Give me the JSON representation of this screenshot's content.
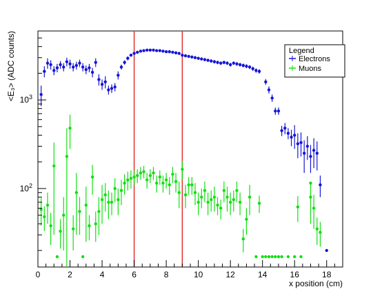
{
  "chart_data": {
    "type": "scatter",
    "ylabel": "<E₃> (ADC counts)",
    "xlabel": "x position (cm)",
    "xlim": [
      0,
      19
    ],
    "ylim": [
      13,
      6000
    ],
    "log_y": true,
    "grid": false,
    "legend_placement": "top-right",
    "legend": {
      "title": "Legend"
    },
    "x_ticks": [
      "0",
      "2",
      "4",
      "6",
      "8",
      "10",
      "12",
      "14",
      "16",
      "18"
    ],
    "y_ticks": [
      {
        "value": 100,
        "label": "10",
        "exp": "2"
      },
      {
        "value": 1000,
        "label": "10",
        "exp": "3"
      }
    ],
    "vlines": [
      6,
      9
    ],
    "vline_color": "#e0302a",
    "series": [
      {
        "name": "Electrons",
        "color": "#1414d8",
        "points": [
          {
            "x": 0.2,
            "y": 1150,
            "e": 300
          },
          {
            "x": 0.4,
            "y": 2100,
            "e": 300
          },
          {
            "x": 0.6,
            "y": 2600,
            "e": 350
          },
          {
            "x": 0.8,
            "y": 2500,
            "e": 300
          },
          {
            "x": 1.0,
            "y": 2150,
            "e": 250
          },
          {
            "x": 1.2,
            "y": 2300,
            "e": 250
          },
          {
            "x": 1.4,
            "y": 2500,
            "e": 250
          },
          {
            "x": 1.6,
            "y": 2350,
            "e": 250
          },
          {
            "x": 1.8,
            "y": 2700,
            "e": 300
          },
          {
            "x": 2.0,
            "y": 2550,
            "e": 300
          },
          {
            "x": 2.2,
            "y": 2350,
            "e": 250
          },
          {
            "x": 2.4,
            "y": 2450,
            "e": 250
          },
          {
            "x": 2.6,
            "y": 2600,
            "e": 250
          },
          {
            "x": 2.8,
            "y": 2350,
            "e": 250
          },
          {
            "x": 3.0,
            "y": 2200,
            "e": 250
          },
          {
            "x": 3.2,
            "y": 2300,
            "e": 250
          },
          {
            "x": 3.4,
            "y": 2050,
            "e": 250
          },
          {
            "x": 3.6,
            "y": 2650,
            "e": 300
          },
          {
            "x": 3.8,
            "y": 1700,
            "e": 250
          },
          {
            "x": 4.0,
            "y": 1500,
            "e": 200
          },
          {
            "x": 4.2,
            "y": 1600,
            "e": 250
          },
          {
            "x": 4.4,
            "y": 1300,
            "e": 150
          },
          {
            "x": 4.6,
            "y": 1350,
            "e": 150
          },
          {
            "x": 4.8,
            "y": 1400,
            "e": 150
          },
          {
            "x": 5.0,
            "y": 1900,
            "e": 200
          },
          {
            "x": 5.2,
            "y": 2350,
            "e": 150
          },
          {
            "x": 5.4,
            "y": 2650,
            "e": 150
          },
          {
            "x": 5.6,
            "y": 2950,
            "e": 150
          },
          {
            "x": 5.8,
            "y": 3200,
            "e": 120
          },
          {
            "x": 6.0,
            "y": 3350,
            "e": 120
          },
          {
            "x": 6.2,
            "y": 3450,
            "e": 120
          },
          {
            "x": 6.4,
            "y": 3550,
            "e": 120
          },
          {
            "x": 6.6,
            "y": 3600,
            "e": 120
          },
          {
            "x": 6.8,
            "y": 3650,
            "e": 120
          },
          {
            "x": 7.0,
            "y": 3650,
            "e": 120
          },
          {
            "x": 7.2,
            "y": 3650,
            "e": 120
          },
          {
            "x": 7.4,
            "y": 3600,
            "e": 120
          },
          {
            "x": 7.6,
            "y": 3600,
            "e": 120
          },
          {
            "x": 7.8,
            "y": 3550,
            "e": 120
          },
          {
            "x": 8.0,
            "y": 3500,
            "e": 120
          },
          {
            "x": 8.2,
            "y": 3500,
            "e": 120
          },
          {
            "x": 8.4,
            "y": 3450,
            "e": 120
          },
          {
            "x": 8.6,
            "y": 3400,
            "e": 120
          },
          {
            "x": 8.8,
            "y": 3350,
            "e": 120
          },
          {
            "x": 9.0,
            "y": 3200,
            "e": 120
          },
          {
            "x": 9.2,
            "y": 3150,
            "e": 120
          },
          {
            "x": 9.4,
            "y": 3100,
            "e": 120
          },
          {
            "x": 9.6,
            "y": 3050,
            "e": 120
          },
          {
            "x": 9.8,
            "y": 3000,
            "e": 120
          },
          {
            "x": 10.0,
            "y": 2950,
            "e": 120
          },
          {
            "x": 10.2,
            "y": 2900,
            "e": 120
          },
          {
            "x": 10.4,
            "y": 2850,
            "e": 120
          },
          {
            "x": 10.6,
            "y": 2800,
            "e": 120
          },
          {
            "x": 10.8,
            "y": 2750,
            "e": 120
          },
          {
            "x": 11.0,
            "y": 2700,
            "e": 120
          },
          {
            "x": 11.2,
            "y": 2650,
            "e": 120
          },
          {
            "x": 11.4,
            "y": 2600,
            "e": 120
          },
          {
            "x": 11.6,
            "y": 2650,
            "e": 120
          },
          {
            "x": 11.8,
            "y": 2600,
            "e": 120
          },
          {
            "x": 12.0,
            "y": 2500,
            "e": 120
          },
          {
            "x": 12.2,
            "y": 2600,
            "e": 120
          },
          {
            "x": 12.4,
            "y": 2550,
            "e": 120
          },
          {
            "x": 12.6,
            "y": 2500,
            "e": 120
          },
          {
            "x": 12.8,
            "y": 2450,
            "e": 120
          },
          {
            "x": 13.0,
            "y": 2400,
            "e": 120
          },
          {
            "x": 13.2,
            "y": 2350,
            "e": 120
          },
          {
            "x": 13.4,
            "y": 2250,
            "e": 120
          },
          {
            "x": 13.6,
            "y": 2150,
            "e": 120
          },
          {
            "x": 13.8,
            "y": 2100,
            "e": 120
          },
          {
            "x": 14.2,
            "y": 1600,
            "e": 120
          },
          {
            "x": 14.4,
            "y": 1300,
            "e": 120
          },
          {
            "x": 14.6,
            "y": 1050,
            "e": 100
          },
          {
            "x": 14.8,
            "y": 750,
            "e": 70
          },
          {
            "x": 15.0,
            "y": 750,
            "e": 70
          },
          {
            "x": 15.2,
            "y": 450,
            "e": 60
          },
          {
            "x": 15.4,
            "y": 480,
            "e": 70
          },
          {
            "x": 15.6,
            "y": 420,
            "e": 60
          },
          {
            "x": 15.8,
            "y": 380,
            "e": 80
          },
          {
            "x": 16.0,
            "y": 400,
            "e": 120
          },
          {
            "x": 16.2,
            "y": 320,
            "e": 100
          },
          {
            "x": 16.4,
            "y": 330,
            "e": 100
          },
          {
            "x": 16.6,
            "y": 250,
            "e": 100
          },
          {
            "x": 16.8,
            "y": 300,
            "e": 90
          },
          {
            "x": 17.0,
            "y": 230,
            "e": 80
          },
          {
            "x": 17.2,
            "y": 270,
            "e": 100
          },
          {
            "x": 17.4,
            "y": 250,
            "e": 90
          },
          {
            "x": 17.6,
            "y": 110,
            "e": 30
          },
          {
            "x": 18.0,
            "y": 20,
            "e": 0
          }
        ]
      },
      {
        "name": "Muons",
        "color": "#10e010",
        "points": [
          {
            "x": 0.2,
            "y": 58,
            "e": 20
          },
          {
            "x": 0.4,
            "y": 48,
            "e": 15
          },
          {
            "x": 0.6,
            "y": 65,
            "e": 25
          },
          {
            "x": 0.8,
            "y": 38,
            "e": 15
          },
          {
            "x": 1.0,
            "y": 180,
            "e": 150
          },
          {
            "x": 1.2,
            "y": 17,
            "e": 0
          },
          {
            "x": 1.4,
            "y": 33,
            "e": 12
          },
          {
            "x": 1.6,
            "y": 50,
            "e": 30
          },
          {
            "x": 1.8,
            "y": 230,
            "e": 250
          },
          {
            "x": 2.0,
            "y": 480,
            "e": 200
          },
          {
            "x": 2.2,
            "y": 35,
            "e": 15
          },
          {
            "x": 2.4,
            "y": 90,
            "e": 60
          },
          {
            "x": 2.6,
            "y": 55,
            "e": 25
          },
          {
            "x": 2.8,
            "y": 17,
            "e": 0
          },
          {
            "x": 3.0,
            "y": 65,
            "e": 40
          },
          {
            "x": 3.2,
            "y": 38,
            "e": 12
          },
          {
            "x": 3.4,
            "y": 135,
            "e": 50
          },
          {
            "x": 3.6,
            "y": 40,
            "e": 15
          },
          {
            "x": 3.8,
            "y": 55,
            "e": 25
          },
          {
            "x": 4.0,
            "y": 75,
            "e": 35
          },
          {
            "x": 4.2,
            "y": 85,
            "e": 30
          },
          {
            "x": 4.4,
            "y": 70,
            "e": 25
          },
          {
            "x": 4.6,
            "y": 70,
            "e": 20
          },
          {
            "x": 4.8,
            "y": 100,
            "e": 30
          },
          {
            "x": 5.0,
            "y": 75,
            "e": 25
          },
          {
            "x": 5.2,
            "y": 95,
            "e": 30
          },
          {
            "x": 5.4,
            "y": 115,
            "e": 30
          },
          {
            "x": 5.6,
            "y": 125,
            "e": 30
          },
          {
            "x": 5.8,
            "y": 130,
            "e": 30
          },
          {
            "x": 6.0,
            "y": 135,
            "e": 25
          },
          {
            "x": 6.2,
            "y": 140,
            "e": 25
          },
          {
            "x": 6.4,
            "y": 150,
            "e": 25
          },
          {
            "x": 6.6,
            "y": 155,
            "e": 25
          },
          {
            "x": 6.8,
            "y": 125,
            "e": 25
          },
          {
            "x": 7.0,
            "y": 140,
            "e": 25
          },
          {
            "x": 7.2,
            "y": 150,
            "e": 25
          },
          {
            "x": 7.4,
            "y": 115,
            "e": 25
          },
          {
            "x": 7.6,
            "y": 135,
            "e": 25
          },
          {
            "x": 7.8,
            "y": 115,
            "e": 25
          },
          {
            "x": 8.0,
            "y": 125,
            "e": 25
          },
          {
            "x": 8.2,
            "y": 110,
            "e": 25
          },
          {
            "x": 8.4,
            "y": 145,
            "e": 30
          },
          {
            "x": 8.6,
            "y": 120,
            "e": 30
          },
          {
            "x": 8.8,
            "y": 90,
            "e": 30
          },
          {
            "x": 9.0,
            "y": 165,
            "e": 40
          },
          {
            "x": 9.2,
            "y": 85,
            "e": 25
          },
          {
            "x": 9.4,
            "y": 110,
            "e": 25
          },
          {
            "x": 9.6,
            "y": 110,
            "e": 25
          },
          {
            "x": 9.8,
            "y": 90,
            "e": 25
          },
          {
            "x": 10.0,
            "y": 70,
            "e": 20
          },
          {
            "x": 10.2,
            "y": 80,
            "e": 20
          },
          {
            "x": 10.4,
            "y": 95,
            "e": 25
          },
          {
            "x": 10.6,
            "y": 70,
            "e": 20
          },
          {
            "x": 10.8,
            "y": 75,
            "e": 20
          },
          {
            "x": 11.0,
            "y": 80,
            "e": 25
          },
          {
            "x": 11.2,
            "y": 65,
            "e": 15
          },
          {
            "x": 11.4,
            "y": 60,
            "e": 15
          },
          {
            "x": 11.6,
            "y": 95,
            "e": 25
          },
          {
            "x": 11.8,
            "y": 80,
            "e": 25
          },
          {
            "x": 12.0,
            "y": 70,
            "e": 20
          },
          {
            "x": 12.2,
            "y": 75,
            "e": 20
          },
          {
            "x": 12.4,
            "y": 95,
            "e": 25
          },
          {
            "x": 12.6,
            "y": 70,
            "e": 20
          },
          {
            "x": 12.8,
            "y": 27,
            "e": 8
          },
          {
            "x": 13.0,
            "y": 45,
            "e": 15
          },
          {
            "x": 13.2,
            "y": 80,
            "e": 30
          },
          {
            "x": 13.6,
            "y": 17,
            "e": 0
          },
          {
            "x": 13.8,
            "y": 68,
            "e": 15
          },
          {
            "x": 14.0,
            "y": 17,
            "e": 0
          },
          {
            "x": 14.2,
            "y": 17,
            "e": 0
          },
          {
            "x": 14.4,
            "y": 17,
            "e": 0
          },
          {
            "x": 14.6,
            "y": 17,
            "e": 0
          },
          {
            "x": 14.8,
            "y": 17,
            "e": 0
          },
          {
            "x": 15.0,
            "y": 17,
            "e": 0
          },
          {
            "x": 15.2,
            "y": 17,
            "e": 0
          },
          {
            "x": 15.6,
            "y": 17,
            "e": 0
          },
          {
            "x": 16.0,
            "y": 17,
            "e": 0
          },
          {
            "x": 16.4,
            "y": 17,
            "e": 0
          },
          {
            "x": 17.0,
            "y": 115,
            "e": 0
          },
          {
            "x": 17.2,
            "y": 60,
            "e": 25
          },
          {
            "x": 17.4,
            "y": 35,
            "e": 12
          },
          {
            "x": 17.6,
            "y": 32,
            "e": 10
          },
          {
            "x": 16.2,
            "y": 62,
            "e": 20
          },
          {
            "x": 17.0,
            "y": 80,
            "e": 40
          }
        ]
      }
    ]
  }
}
